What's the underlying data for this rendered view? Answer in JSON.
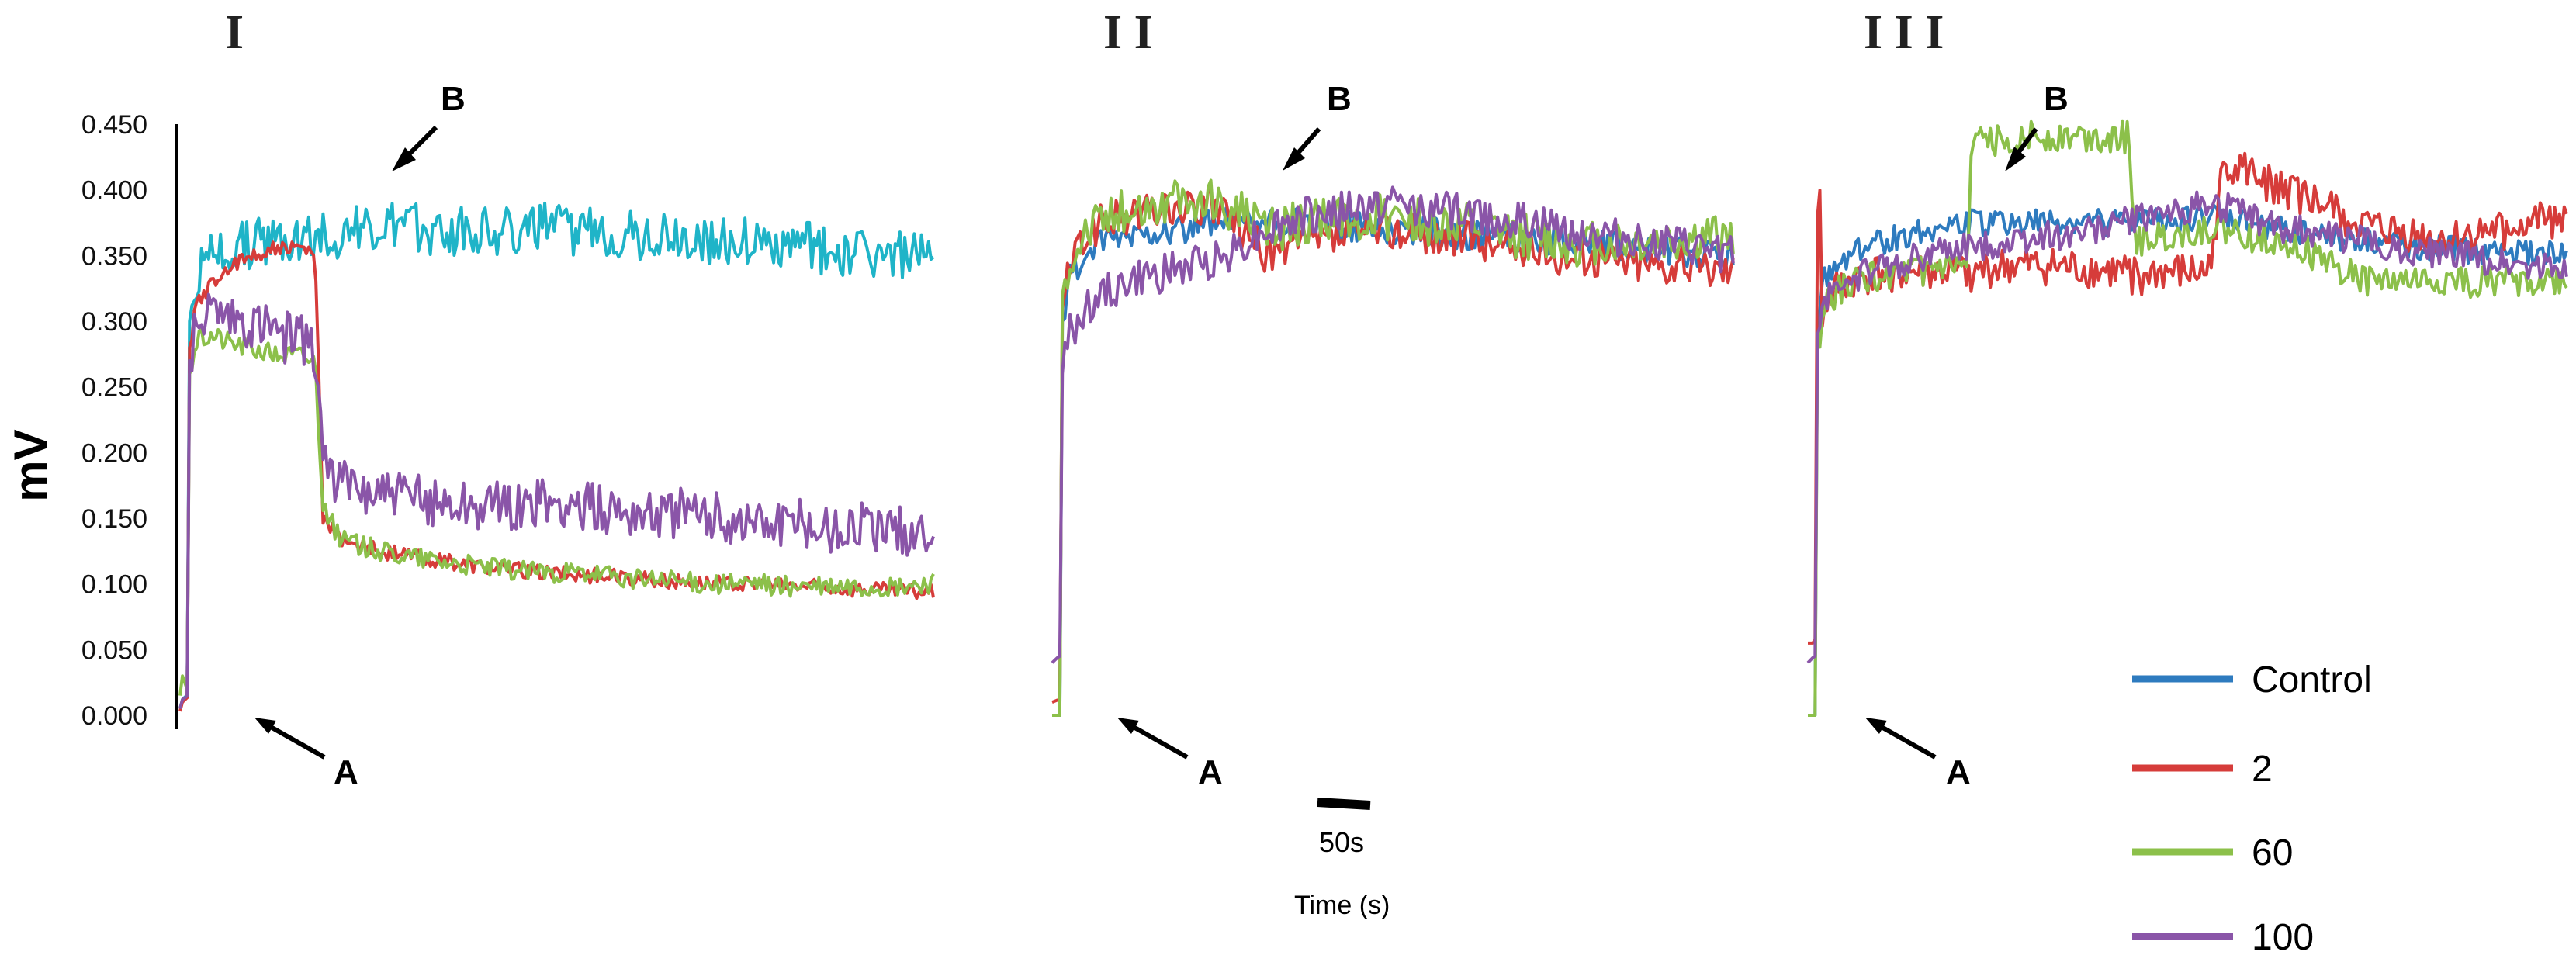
{
  "chart_data": {
    "type": "line",
    "ylabel": "mV",
    "xlabel": "Time (s)",
    "ylim": [
      0,
      0.45
    ],
    "yticks": [
      "0.000",
      "0.050",
      "0.100",
      "0.150",
      "0.200",
      "0.250",
      "0.300",
      "0.350",
      "0.400",
      "0.450"
    ],
    "scale_bar_label": "50s",
    "marker_labels": {
      "a": "A",
      "b": "B"
    },
    "legend": [
      {
        "name": "Control",
        "color": "#2e7bbf"
      },
      {
        "name": "2",
        "color": "#d63c3a"
      },
      {
        "name": "60",
        "color": "#8cc04a"
      },
      {
        "name": "100",
        "color": "#8a55a8"
      }
    ],
    "panels": [
      {
        "label": "I",
        "series": [
          {
            "name": "Control",
            "color": "#1fb4c8",
            "x": [
              0,
              3,
              10,
              12,
              20,
              40,
              60,
              90,
              120,
              160,
              200,
              250,
              300,
              400,
              500,
              600,
              700,
              800,
              900,
              950
            ],
            "y": [
              0.005,
              0.012,
              0.016,
              0.3,
              0.33,
              0.35,
              0.355,
              0.36,
              0.362,
              0.365,
              0.368,
              0.37,
              0.37,
              0.37,
              0.37,
              0.365,
              0.36,
              0.355,
              0.35,
              0.345
            ],
            "noise": 0.02
          },
          {
            "name": "2",
            "color": "#d63c3a",
            "x": [
              0,
              3,
              10,
              12,
              20,
              40,
              60,
              90,
              120,
              150,
              170,
              180,
              200,
              250,
              300,
              400,
              500,
              600,
              700,
              800,
              900,
              950
            ],
            "y": [
              0.003,
              0.01,
              0.014,
              0.28,
              0.31,
              0.33,
              0.34,
              0.35,
              0.355,
              0.355,
              0.35,
              0.15,
              0.135,
              0.125,
              0.12,
              0.112,
              0.107,
              0.103,
              0.1,
              0.098,
              0.095,
              0.094
            ],
            "noise": 0.006
          },
          {
            "name": "60",
            "color": "#8cc04a",
            "x": [
              0,
              3,
              10,
              12,
              20,
              40,
              60,
              90,
              120,
              150,
              170,
              180,
              200,
              250,
              300,
              400,
              500,
              600,
              700,
              800,
              900,
              950
            ],
            "y": [
              0.015,
              0.03,
              0.018,
              0.26,
              0.285,
              0.29,
              0.285,
              0.28,
              0.275,
              0.275,
              0.27,
              0.16,
              0.135,
              0.125,
              0.12,
              0.112,
              0.107,
              0.103,
              0.1,
              0.098,
              0.097,
              0.1
            ],
            "noise": 0.008
          },
          {
            "name": "100",
            "color": "#8a55a8",
            "x": [
              0,
              3,
              10,
              12,
              20,
              40,
              60,
              90,
              120,
              150,
              170,
              180,
              200,
              250,
              300,
              400,
              500,
              600,
              700,
              800,
              900,
              950
            ],
            "y": [
              0.005,
              0.012,
              0.015,
              0.27,
              0.3,
              0.305,
              0.3,
              0.295,
              0.29,
              0.285,
              0.28,
              0.2,
              0.175,
              0.17,
              0.165,
              0.16,
              0.16,
              0.155,
              0.15,
              0.145,
              0.14,
              0.138
            ],
            "noise": 0.02
          }
        ]
      },
      {
        "label": "I I",
        "series": [
          {
            "name": "Control",
            "color": "#2e7bbf",
            "x": [
              0,
              8,
              10,
              12,
              20,
              40,
              60,
              90,
              120,
              150,
              200,
              250,
              300,
              400,
              500,
              600,
              700,
              800
            ],
            "y": [
              0.0,
              0.0,
              0.0,
              0.3,
              0.33,
              0.35,
              0.36,
              0.365,
              0.37,
              0.37,
              0.375,
              0.375,
              0.375,
              0.37,
              0.365,
              0.36,
              0.355,
              0.35
            ],
            "noise": 0.012
          },
          {
            "name": "2",
            "color": "#d63c3a",
            "x": [
              0,
              8,
              10,
              12,
              20,
              40,
              60,
              90,
              120,
              150,
              200,
              250,
              300,
              400,
              500,
              600,
              700,
              800
            ],
            "y": [
              0.01,
              0.012,
              0.012,
              0.31,
              0.34,
              0.365,
              0.375,
              0.38,
              0.385,
              0.385,
              0.385,
              0.35,
              0.36,
              0.37,
              0.36,
              0.35,
              0.345,
              0.34
            ],
            "noise": 0.015
          },
          {
            "name": "60",
            "color": "#8cc04a",
            "x": [
              0,
              8,
              10,
              12,
              20,
              40,
              60,
              90,
              120,
              150,
              200,
              250,
              300,
              400,
              500,
              600,
              700,
              800
            ],
            "y": [
              0.0,
              0.0,
              0.0,
              0.32,
              0.35,
              0.37,
              0.38,
              0.385,
              0.39,
              0.39,
              0.39,
              0.37,
              0.375,
              0.38,
              0.37,
              0.36,
              0.36,
              0.365
            ],
            "noise": 0.018
          },
          {
            "name": "100",
            "color": "#8a55a8",
            "x": [
              0,
              8,
              10,
              12,
              20,
              40,
              60,
              90,
              120,
              150,
              200,
              250,
              300,
              400,
              500,
              600,
              700,
              800
            ],
            "y": [
              0.04,
              0.045,
              0.045,
              0.26,
              0.29,
              0.31,
              0.32,
              0.33,
              0.335,
              0.34,
              0.35,
              0.37,
              0.38,
              0.39,
              0.38,
              0.37,
              0.36,
              0.35
            ],
            "noise": 0.015
          }
        ]
      },
      {
        "label": "I I I",
        "series": [
          {
            "name": "Control",
            "color": "#2e7bbf",
            "x": [
              0,
              8,
              10,
              12,
              20,
              40,
              60,
              90,
              120,
              150,
              200,
              250,
              300,
              400,
              500,
              600,
              700,
              800,
              950
            ],
            "y": [
              0.0,
              0.0,
              0.0,
              0.3,
              0.33,
              0.345,
              0.355,
              0.36,
              0.365,
              0.37,
              0.375,
              0.375,
              0.375,
              0.375,
              0.38,
              0.37,
              0.36,
              0.355,
              0.35
            ],
            "noise": 0.01
          },
          {
            "name": "2",
            "color": "#d63c3a",
            "x": [
              0,
              8,
              10,
              12,
              15,
              18,
              20,
              40,
              60,
              90,
              120,
              150,
              200,
              250,
              300,
              400,
              500,
              520,
              600,
              700,
              800,
              950
            ],
            "y": [
              0.055,
              0.055,
              0.06,
              0.38,
              0.39,
              0.3,
              0.31,
              0.325,
              0.33,
              0.335,
              0.335,
              0.335,
              0.335,
              0.34,
              0.34,
              0.335,
              0.335,
              0.42,
              0.4,
              0.37,
              0.36,
              0.38
            ],
            "noise": 0.015
          },
          {
            "name": "60",
            "color": "#8cc04a",
            "x": [
              0,
              8,
              10,
              12,
              20,
              40,
              60,
              90,
              120,
              150,
              200,
              205,
              250,
              300,
              400,
              410,
              500,
              600,
              700,
              800,
              950
            ],
            "y": [
              0.0,
              0.0,
              0.0,
              0.28,
              0.31,
              0.325,
              0.33,
              0.335,
              0.335,
              0.34,
              0.34,
              0.435,
              0.44,
              0.44,
              0.44,
              0.36,
              0.37,
              0.36,
              0.33,
              0.33,
              0.33
            ],
            "noise": 0.012
          },
          {
            "name": "100",
            "color": "#8a55a8",
            "x": [
              0,
              8,
              10,
              12,
              20,
              40,
              60,
              90,
              120,
              150,
              200,
              250,
              300,
              400,
              500,
              600,
              700,
              800,
              950
            ],
            "y": [
              0.04,
              0.045,
              0.045,
              0.29,
              0.315,
              0.33,
              0.335,
              0.34,
              0.345,
              0.35,
              0.355,
              0.36,
              0.365,
              0.375,
              0.39,
              0.37,
              0.36,
              0.35,
              0.34
            ],
            "noise": 0.012
          }
        ]
      }
    ]
  }
}
